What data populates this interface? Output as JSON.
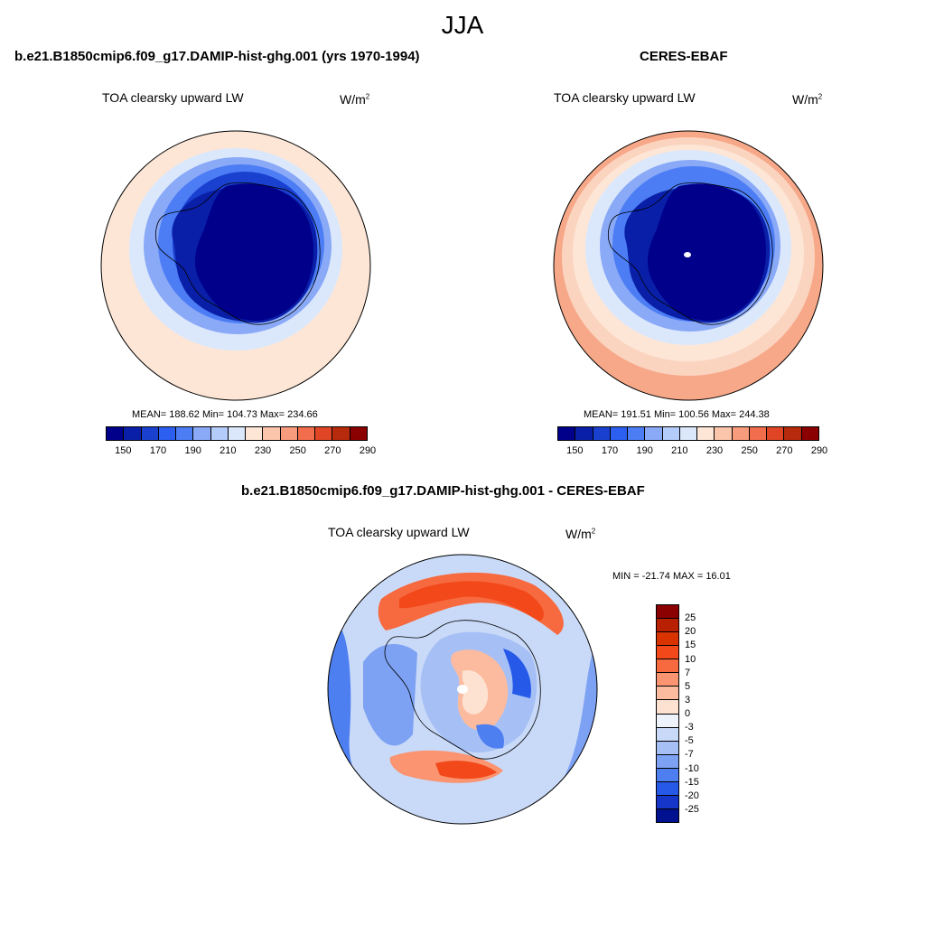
{
  "figure": {
    "season": "JJA"
  },
  "panels": {
    "model": {
      "title": "b.e21.B1850cmip6.f09_g17.DAMIP-hist-ghg.001 (yrs 1970-1994)",
      "variable": "TOA clearsky upward LW",
      "units_base": "W/m",
      "units_exp": "2",
      "stats": "MEAN= 188.62  Min= 104.73  Max= 234.66"
    },
    "obs": {
      "title": "CERES-EBAF",
      "variable": "TOA clearsky upward LW",
      "units_base": "W/m",
      "units_exp": "2",
      "stats": "MEAN= 191.51  Min= 100.56  Max= 244.38"
    },
    "diff": {
      "title": "b.e21.B1850cmip6.f09_g17.DAMIP-hist-ghg.001 - CERES-EBAF",
      "variable": "TOA clearsky upward LW",
      "units_base": "W/m",
      "units_exp": "2",
      "stats": "MIN = -21.74 MAX =  16.01"
    }
  },
  "colorbars": {
    "abs": {
      "colors": [
        "#00008b",
        "#0a1fa8",
        "#1a40d0",
        "#2c5ef0",
        "#4c7df5",
        "#8aa9f7",
        "#b4ccfa",
        "#dbe8fc",
        "#fde6d6",
        "#fbc5ab",
        "#f79c7c",
        "#f26d4b",
        "#e04526",
        "#b82a0c",
        "#8b0000"
      ],
      "labels": [
        "150",
        "170",
        "190",
        "210",
        "230",
        "250",
        "270",
        "290"
      ]
    },
    "diff": {
      "colors": [
        "#8b0000",
        "#b82000",
        "#d93300",
        "#f2481a",
        "#f7693f",
        "#fa9471",
        "#fcbb9e",
        "#fde2d2",
        "#eef2fb",
        "#c9daf8",
        "#a6c0f6",
        "#7ea2f3",
        "#4d7ff0",
        "#2659e8",
        "#1536c8",
        "#00118f"
      ],
      "labels": [
        "25",
        "20",
        "15",
        "10",
        "7",
        "5",
        "3",
        "0",
        "-3",
        "-5",
        "-7",
        "-10",
        "-15",
        "-20",
        "-25"
      ]
    }
  },
  "map_palette": {
    "ocean_warm": "#fde6d6",
    "ocean_mid": "#fbd4c0",
    "ocean_red": "#f7a888",
    "ice_light": "#dbe8fc",
    "ice_mid": "#8aa9f7",
    "ice_blue": "#4c7df5",
    "ice_deep": "#1a40d0",
    "plateau": "#00008b",
    "plateau2": "#0a1fa8"
  }
}
